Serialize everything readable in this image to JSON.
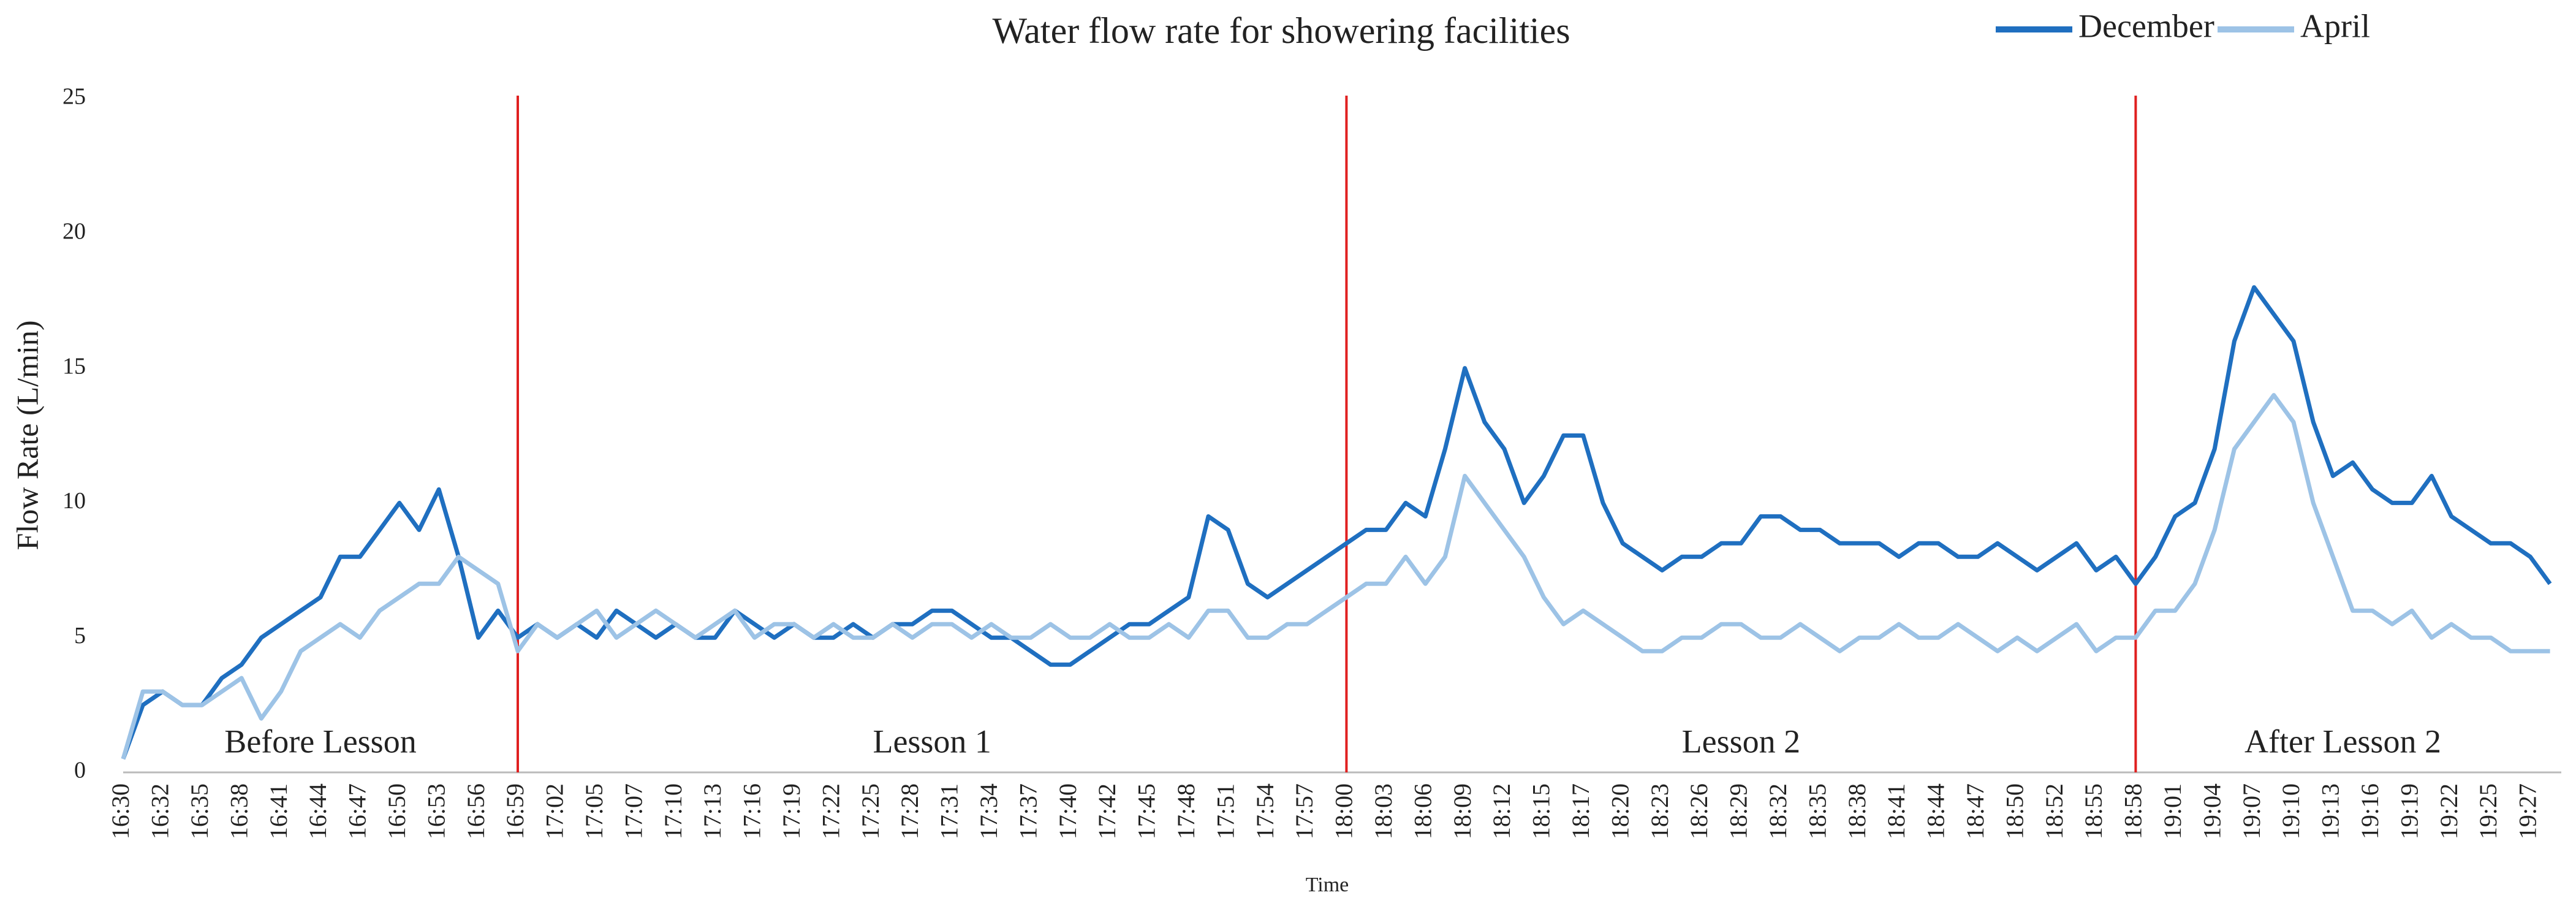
{
  "chart_data": {
    "type": "line",
    "title": "Water  flow rate for showering facilities",
    "xlabel": "Time",
    "ylabel": "Flow Rate (L/min)",
    "ylim": [
      0,
      25
    ],
    "yticks": [
      0,
      5,
      10,
      15,
      20,
      25
    ],
    "legend": "upper right",
    "categories": [
      "16:30",
      null,
      "16:32",
      null,
      "16:35",
      null,
      "16:38",
      null,
      "16:41",
      null,
      "16:44",
      null,
      "16:47",
      null,
      "16:50",
      null,
      "16:53",
      null,
      "16:56",
      null,
      "16:59",
      null,
      "17:02",
      null,
      "17:05",
      null,
      "17:07",
      null,
      "17:10",
      null,
      "17:13",
      null,
      "17:16",
      null,
      "17:19",
      null,
      "17:22",
      null,
      "17:25",
      null,
      "17:28",
      null,
      "17:31",
      null,
      "17:34",
      null,
      "17:37",
      null,
      "17:40",
      null,
      "17:42",
      null,
      "17:45",
      null,
      "17:48",
      null,
      "17:51",
      null,
      "17:54",
      null,
      "17:57",
      null,
      "18:00",
      null,
      "18:03",
      null,
      "18:06",
      null,
      "18:09",
      null,
      "18:12",
      null,
      "18:15",
      null,
      "18:17",
      null,
      "18:20",
      null,
      "18:23",
      null,
      "18:26",
      null,
      "18:29",
      null,
      "18:32",
      null,
      "18:35",
      null,
      "18:38",
      null,
      "18:41",
      null,
      "18:44",
      null,
      "18:47",
      null,
      "18:50",
      null,
      "18:52",
      null,
      "18:55",
      null,
      "18:58",
      null,
      "19:01",
      null,
      "19:04",
      null,
      "19:07",
      null,
      "19:10",
      null,
      "19:13",
      null,
      "19:16",
      null,
      "19:19",
      null,
      "19:22",
      null,
      "19:25",
      null,
      "19:27",
      null
    ],
    "series": [
      {
        "name": "December",
        "color": "#1f6fc0",
        "values": [
          0.5,
          2.5,
          3,
          2.5,
          2.5,
          3.5,
          4,
          5,
          5.5,
          6,
          6.5,
          8,
          8,
          9,
          10,
          9,
          10.5,
          8,
          5,
          6,
          5,
          5.5,
          5,
          5.5,
          5,
          6,
          5.5,
          5,
          5.5,
          5,
          5,
          6,
          5.5,
          5,
          5.5,
          5,
          5,
          5.5,
          5,
          5.5,
          5.5,
          6,
          6,
          5.5,
          5,
          5,
          4.5,
          4,
          4,
          4.5,
          5,
          5.5,
          5.5,
          6,
          6.5,
          9.5,
          9,
          7,
          6.5,
          7,
          7.5,
          8,
          8.5,
          9,
          9,
          10,
          9.5,
          12,
          15,
          13,
          12,
          10,
          11,
          12.5,
          12.5,
          10,
          8.5,
          8,
          7.5,
          8,
          8,
          8.5,
          8.5,
          9.5,
          9.5,
          9,
          9,
          8.5,
          8.5,
          8.5,
          8,
          8.5,
          8.5,
          8,
          8,
          8.5,
          8,
          7.5,
          8,
          8.5,
          7.5,
          8,
          7,
          8,
          9.5,
          10,
          12,
          16,
          18,
          17,
          16,
          13,
          11,
          11.5,
          10.5,
          10,
          10,
          11,
          9.5,
          9,
          8.5,
          8.5,
          8,
          7
        ]
      },
      {
        "name": "April",
        "color": "#9dc3e6",
        "values": [
          0.5,
          3,
          3,
          2.5,
          2.5,
          3,
          3.5,
          2,
          3,
          4.5,
          5,
          5.5,
          5,
          6,
          6.5,
          7,
          7,
          8,
          7.5,
          7,
          4.5,
          5.5,
          5,
          5.5,
          6,
          5,
          5.5,
          6,
          5.5,
          5,
          5.5,
          6,
          5,
          5.5,
          5.5,
          5,
          5.5,
          5,
          5,
          5.5,
          5,
          5.5,
          5.5,
          5,
          5.5,
          5,
          5,
          5.5,
          5,
          5,
          5.5,
          5,
          5,
          5.5,
          5,
          6,
          6,
          5,
          5,
          5.5,
          5.5,
          6,
          6.5,
          7,
          7,
          8,
          7,
          8,
          11,
          10,
          9,
          8,
          6.5,
          5.5,
          6,
          5.5,
          5,
          4.5,
          4.5,
          5,
          5,
          5.5,
          5.5,
          5,
          5,
          5.5,
          5,
          4.5,
          5,
          5,
          5.5,
          5,
          5,
          5.5,
          5,
          4.5,
          5,
          4.5,
          5,
          5.5,
          4.5,
          5,
          5,
          6,
          6,
          7,
          9,
          12,
          13,
          14,
          13,
          10,
          8,
          6,
          6,
          5.5,
          6,
          5,
          5.5,
          5,
          5,
          4.5,
          4.5,
          4.5
        ]
      }
    ],
    "dividers": {
      "color": "#e02020",
      "at": [
        "16:59",
        "18:00",
        "18:58"
      ]
    },
    "periods": [
      "Before Lesson",
      "Lesson 1",
      "Lesson 2",
      "After Lesson 2"
    ]
  }
}
